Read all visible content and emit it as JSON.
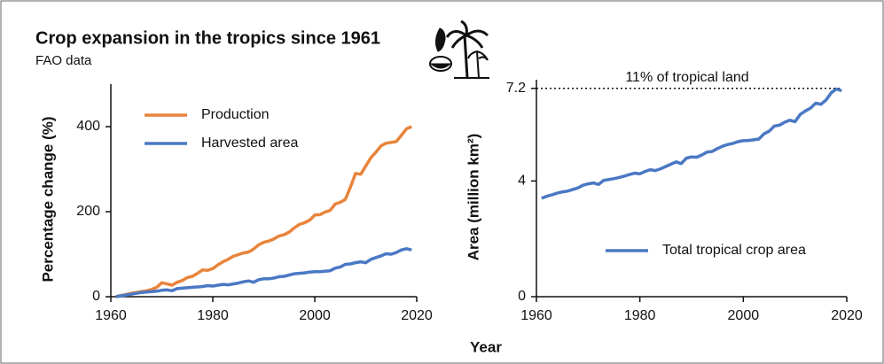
{
  "title": "Crop expansion in the tropics since 1961",
  "subtitle": "FAO data",
  "x_label": "Year",
  "chart_data": [
    {
      "type": "line",
      "y_label": "Percentage change (%)",
      "x": [
        1961,
        1962,
        1963,
        1964,
        1965,
        1966,
        1967,
        1968,
        1969,
        1970,
        1971,
        1972,
        1973,
        1974,
        1975,
        1976,
        1977,
        1978,
        1979,
        1980,
        1981,
        1982,
        1983,
        1984,
        1985,
        1986,
        1987,
        1988,
        1989,
        1990,
        1991,
        1992,
        1993,
        1994,
        1995,
        1996,
        1997,
        1998,
        1999,
        2000,
        2001,
        2002,
        2003,
        2004,
        2005,
        2006,
        2007,
        2008,
        2009,
        2010,
        2011,
        2012,
        2013,
        2014,
        2015,
        2016,
        2017,
        2018,
        2019
      ],
      "series": [
        {
          "name": "Production",
          "color": "#e8843c",
          "values": [
            0,
            3,
            5,
            8,
            10,
            12,
            14,
            17,
            22,
            33,
            30,
            27,
            34,
            38,
            45,
            48,
            55,
            63,
            62,
            66,
            75,
            82,
            88,
            95,
            99,
            103,
            105,
            112,
            122,
            128,
            131,
            136,
            143,
            146,
            152,
            162,
            170,
            174,
            180,
            192,
            193,
            199,
            203,
            218,
            222,
            229,
            258,
            290,
            288,
            307,
            327,
            340,
            355,
            361,
            363,
            365,
            380,
            395,
            400
          ]
        },
        {
          "name": "Harvested area",
          "color": "#4a78c4",
          "values": [
            0,
            2,
            4,
            6,
            8,
            10,
            11,
            12,
            13,
            15,
            16,
            14,
            19,
            20,
            21,
            22,
            23,
            24,
            26,
            25,
            27,
            29,
            28,
            30,
            32,
            35,
            37,
            34,
            40,
            42,
            42,
            44,
            47,
            48,
            51,
            54,
            55,
            56,
            58,
            59,
            59,
            60,
            61,
            67,
            70,
            76,
            77,
            80,
            82,
            80,
            88,
            92,
            96,
            101,
            100,
            104,
            110,
            113,
            110
          ]
        }
      ],
      "xlim": [
        1960,
        2020
      ],
      "xticks": [
        1960,
        1980,
        2000,
        2020
      ],
      "ylim": [
        0,
        500
      ],
      "yticks": [
        0,
        200,
        400
      ],
      "legend": "upper left"
    },
    {
      "type": "line",
      "y_label": "Area (million km²)",
      "annotation": "11% of tropical land",
      "reference_line": 7.2,
      "x": [
        1961,
        1962,
        1963,
        1964,
        1965,
        1966,
        1967,
        1968,
        1969,
        1970,
        1971,
        1972,
        1973,
        1974,
        1975,
        1976,
        1977,
        1978,
        1979,
        1980,
        1981,
        1982,
        1983,
        1984,
        1985,
        1986,
        1987,
        1988,
        1989,
        1990,
        1991,
        1992,
        1993,
        1994,
        1995,
        1996,
        1997,
        1998,
        1999,
        2000,
        2001,
        2002,
        2003,
        2004,
        2005,
        2006,
        2007,
        2008,
        2009,
        2010,
        2011,
        2012,
        2013,
        2014,
        2015,
        2016,
        2017,
        2018,
        2019
      ],
      "series": [
        {
          "name": "Total tropical crop area",
          "color": "#4a78c4",
          "values": [
            3.4,
            3.47,
            3.52,
            3.58,
            3.62,
            3.65,
            3.7,
            3.76,
            3.85,
            3.9,
            3.93,
            3.88,
            4.02,
            4.05,
            4.08,
            4.12,
            4.17,
            4.22,
            4.27,
            4.25,
            4.33,
            4.39,
            4.36,
            4.42,
            4.5,
            4.58,
            4.66,
            4.6,
            4.79,
            4.83,
            4.82,
            4.9,
            5.0,
            5.02,
            5.12,
            5.2,
            5.26,
            5.3,
            5.36,
            5.39,
            5.4,
            5.42,
            5.45,
            5.63,
            5.72,
            5.9,
            5.93,
            6.03,
            6.1,
            6.05,
            6.3,
            6.42,
            6.52,
            6.69,
            6.65,
            6.8,
            7.05,
            7.18,
            7.12
          ]
        }
      ],
      "xlim": [
        1960,
        2020
      ],
      "xticks": [
        1960,
        1980,
        2000,
        2020
      ],
      "ylim": [
        0,
        7.5
      ],
      "yticks": [
        0,
        4,
        7.2
      ],
      "legend": "lower right"
    }
  ]
}
